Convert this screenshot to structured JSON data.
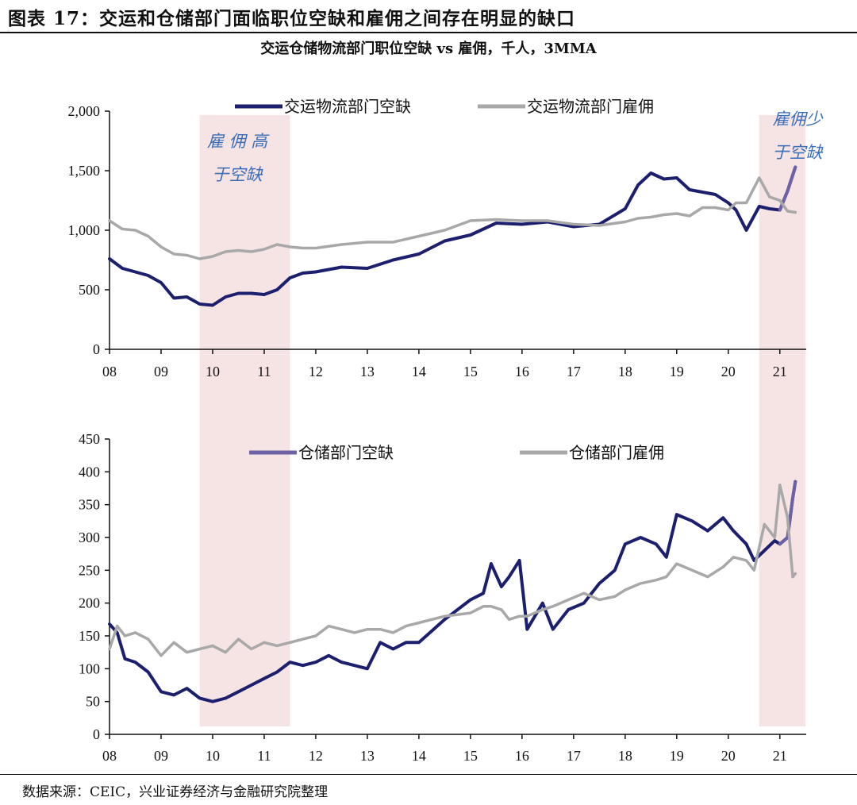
{
  "figure_title": "图表 17：交运和仓储部门面临职位空缺和雇佣之间存在明显的缺口",
  "subtitle": "交运仓储物流部门职位空缺 vs 雇佣，千人，3MMA",
  "source": "数据来源：CEIC，兴业证券经济与金融研究院整理",
  "colors": {
    "vacancy_top": "#1b1f6e",
    "vacancy_bottom": "#1b1f6e",
    "vacancy_recent": "#6b63a6",
    "hiring": "#a8a8a8",
    "shade": "#f6e3e3",
    "axis": "#111111",
    "note": "#3b6fb8"
  },
  "shaded_periods": [
    {
      "start": 2009.75,
      "end": 2011.5
    },
    {
      "start": 2020.6,
      "end": 2021.5
    }
  ],
  "chart_data": [
    {
      "type": "line",
      "title": "",
      "xlabel": "",
      "ylabel": "",
      "x_ticks": [
        "08",
        "09",
        "10",
        "11",
        "12",
        "13",
        "14",
        "15",
        "16",
        "17",
        "18",
        "19",
        "20",
        "21"
      ],
      "xlim": [
        2008,
        2021.45
      ],
      "ylim": [
        0,
        2000
      ],
      "y_ticks": [
        "0",
        "500",
        "1,000",
        "1,500",
        "2,000"
      ],
      "legend": "top-center",
      "annotations": [
        {
          "text": [
            "雇 佣 高",
            "于空缺"
          ],
          "position": "inside-first-shaded-band"
        },
        {
          "text": [
            "雇佣少",
            "于空缺"
          ],
          "position": "inside-second-shaded-band"
        }
      ],
      "series": [
        {
          "name": "交运物流部门空缺",
          "x": [
            2008.0,
            2008.25,
            2008.5,
            2008.75,
            2009.0,
            2009.25,
            2009.5,
            2009.75,
            2010.0,
            2010.25,
            2010.5,
            2010.75,
            2011.0,
            2011.25,
            2011.5,
            2011.75,
            2012.0,
            2012.5,
            2013.0,
            2013.5,
            2014.0,
            2014.5,
            2015.0,
            2015.5,
            2016.0,
            2016.5,
            2017.0,
            2017.5,
            2018.0,
            2018.25,
            2018.5,
            2018.75,
            2019.0,
            2019.25,
            2019.5,
            2019.75,
            2020.0,
            2020.15,
            2020.35,
            2020.6,
            2020.8,
            2021.0,
            2021.15,
            2021.3
          ],
          "y": [
            760,
            680,
            650,
            620,
            560,
            430,
            440,
            380,
            370,
            440,
            470,
            470,
            460,
            500,
            600,
            640,
            650,
            690,
            680,
            750,
            800,
            910,
            960,
            1060,
            1050,
            1070,
            1030,
            1050,
            1180,
            1380,
            1480,
            1430,
            1440,
            1340,
            1320,
            1300,
            1230,
            1170,
            1000,
            1200,
            1180,
            1170,
            1330,
            1530
          ]
        },
        {
          "name": "交运物流部门雇佣",
          "x": [
            2008.0,
            2008.25,
            2008.5,
            2008.75,
            2009.0,
            2009.25,
            2009.5,
            2009.75,
            2010.0,
            2010.25,
            2010.5,
            2010.75,
            2011.0,
            2011.25,
            2011.5,
            2011.75,
            2012.0,
            2012.5,
            2013.0,
            2013.5,
            2014.0,
            2014.5,
            2015.0,
            2015.5,
            2016.0,
            2016.5,
            2017.0,
            2017.5,
            2018.0,
            2018.25,
            2018.5,
            2018.75,
            2019.0,
            2019.25,
            2019.5,
            2019.75,
            2020.0,
            2020.15,
            2020.35,
            2020.6,
            2020.8,
            2021.0,
            2021.15,
            2021.3
          ],
          "y": [
            1080,
            1010,
            1000,
            950,
            860,
            800,
            790,
            760,
            780,
            820,
            830,
            820,
            840,
            880,
            860,
            850,
            850,
            880,
            900,
            900,
            950,
            1000,
            1080,
            1090,
            1080,
            1080,
            1050,
            1040,
            1070,
            1100,
            1110,
            1130,
            1140,
            1120,
            1190,
            1190,
            1170,
            1230,
            1230,
            1440,
            1280,
            1250,
            1160,
            1150
          ]
        }
      ]
    },
    {
      "type": "line",
      "title": "",
      "xlabel": "",
      "ylabel": "",
      "x_ticks": [
        "08",
        "09",
        "10",
        "11",
        "12",
        "13",
        "14",
        "15",
        "16",
        "17",
        "18",
        "19",
        "20",
        "21"
      ],
      "xlim": [
        2008,
        2021.45
      ],
      "ylim": [
        0,
        450
      ],
      "y_ticks": [
        "0",
        "50",
        "100",
        "150",
        "200",
        "250",
        "300",
        "350",
        "400",
        "450"
      ],
      "legend": "top-center",
      "series": [
        {
          "name": "仓储部门空缺",
          "x": [
            2008.0,
            2008.15,
            2008.3,
            2008.5,
            2008.75,
            2009.0,
            2009.25,
            2009.5,
            2009.75,
            2010.0,
            2010.25,
            2010.5,
            2010.75,
            2011.0,
            2011.25,
            2011.5,
            2011.75,
            2012.0,
            2012.25,
            2012.5,
            2012.75,
            2013.0,
            2013.25,
            2013.5,
            2013.75,
            2014.0,
            2014.5,
            2015.0,
            2015.25,
            2015.4,
            2015.6,
            2015.75,
            2015.95,
            2016.1,
            2016.4,
            2016.6,
            2016.9,
            2017.2,
            2017.5,
            2017.8,
            2018.0,
            2018.3,
            2018.6,
            2018.8,
            2019.0,
            2019.3,
            2019.6,
            2019.9,
            2020.1,
            2020.35,
            2020.5,
            2020.7,
            2020.9,
            2021.0,
            2021.15,
            2021.25,
            2021.3
          ],
          "y": [
            168,
            155,
            115,
            110,
            95,
            65,
            60,
            70,
            55,
            50,
            55,
            65,
            75,
            85,
            95,
            110,
            105,
            110,
            120,
            110,
            105,
            100,
            140,
            130,
            140,
            140,
            175,
            205,
            215,
            260,
            225,
            240,
            265,
            160,
            200,
            160,
            190,
            200,
            230,
            250,
            290,
            300,
            290,
            270,
            335,
            325,
            310,
            330,
            310,
            290,
            265,
            280,
            295,
            290,
            300,
            360,
            385
          ]
        },
        {
          "name": "仓储部门雇佣",
          "x": [
            2008.0,
            2008.15,
            2008.3,
            2008.5,
            2008.75,
            2009.0,
            2009.25,
            2009.5,
            2009.75,
            2010.0,
            2010.25,
            2010.5,
            2010.75,
            2011.0,
            2011.25,
            2011.5,
            2011.75,
            2012.0,
            2012.25,
            2012.5,
            2012.75,
            2013.0,
            2013.25,
            2013.5,
            2013.75,
            2014.0,
            2014.5,
            2015.0,
            2015.25,
            2015.4,
            2015.6,
            2015.75,
            2015.95,
            2016.1,
            2016.4,
            2016.6,
            2016.9,
            2017.2,
            2017.5,
            2017.8,
            2018.0,
            2018.3,
            2018.6,
            2018.8,
            2019.0,
            2019.3,
            2019.6,
            2019.9,
            2020.1,
            2020.35,
            2020.5,
            2020.7,
            2020.9,
            2021.0,
            2021.15,
            2021.25,
            2021.3
          ],
          "y": [
            130,
            165,
            150,
            155,
            145,
            120,
            140,
            125,
            130,
            135,
            125,
            145,
            130,
            140,
            135,
            140,
            145,
            150,
            165,
            160,
            155,
            160,
            160,
            155,
            165,
            170,
            180,
            185,
            195,
            195,
            190,
            175,
            180,
            180,
            190,
            195,
            205,
            215,
            205,
            210,
            220,
            230,
            235,
            240,
            260,
            250,
            240,
            255,
            270,
            265,
            250,
            320,
            300,
            380,
            330,
            240,
            245
          ]
        }
      ]
    }
  ]
}
